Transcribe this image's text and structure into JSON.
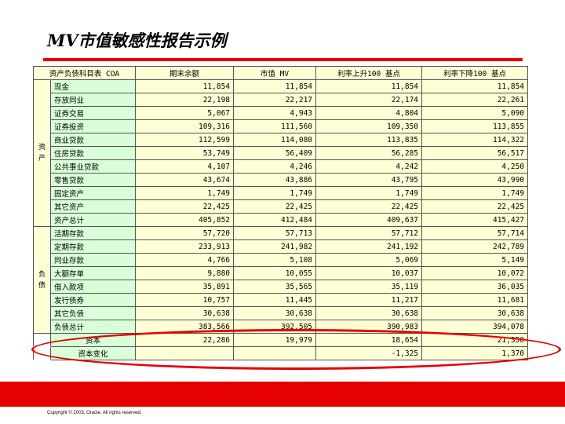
{
  "slide": {
    "title": "MV市值敏感性报告示例",
    "copyright": "Copyright © 2003, Oracle.  All rights reserved."
  },
  "table": {
    "headers": [
      "资产负债科目表 COA",
      "期末余额",
      "市值 MV",
      "利率上升100 基点",
      "利率下降100 基点"
    ],
    "asset_section_label": "资\n产",
    "liability_section_label": "负\n债",
    "assets": [
      {
        "label": "现金",
        "values": [
          "11,854",
          "11,854",
          "11,854",
          "11,854"
        ]
      },
      {
        "label": "存放同业",
        "values": [
          "22,198",
          "22,217",
          "22,174",
          "22,261"
        ]
      },
      {
        "label": "证券交易",
        "values": [
          "5,067",
          "4,943",
          "4,804",
          "5,090"
        ]
      },
      {
        "label": "证券投资",
        "values": [
          "109,316",
          "111,560",
          "109,350",
          "113,855"
        ]
      },
      {
        "label": "商业贷款",
        "values": [
          "112,599",
          "114,080",
          "113,835",
          "114,322"
        ]
      },
      {
        "label": "住房贷款",
        "values": [
          "53,749",
          "56,409",
          "56,285",
          "56,517"
        ]
      },
      {
        "label": "公共事业贷款",
        "values": [
          "4,107",
          "4,246",
          "4,242",
          "4,250"
        ]
      },
      {
        "label": "零售贷款",
        "values": [
          "43,674",
          "43,886",
          "43,795",
          "43,990"
        ]
      },
      {
        "label": "固定资产",
        "values": [
          "1,749",
          "1,749",
          "1,749",
          "1,749"
        ]
      },
      {
        "label": "其它资产",
        "values": [
          "22,425",
          "22,425",
          "22,425",
          "22,425"
        ]
      },
      {
        "label": "资产总计",
        "values": [
          "405,852",
          "412,484",
          "409,637",
          "415,427"
        ]
      }
    ],
    "liabilities": [
      {
        "label": "活期存款",
        "values": [
          "57,720",
          "57,713",
          "57,712",
          "57,714"
        ]
      },
      {
        "label": "定期存款",
        "values": [
          "233,913",
          "241,982",
          "241,192",
          "242,789"
        ]
      },
      {
        "label": "同业存款",
        "values": [
          "4,766",
          "5,108",
          "5,069",
          "5,149"
        ]
      },
      {
        "label": "大额存单",
        "values": [
          "9,880",
          "10,055",
          "10,037",
          "10,072"
        ]
      },
      {
        "label": "借入款项",
        "values": [
          "35,891",
          "35,565",
          "35,119",
          "36,035"
        ]
      },
      {
        "label": "发行债券",
        "values": [
          "10,757",
          "11,445",
          "11,217",
          "11,681"
        ]
      },
      {
        "label": "其它负债",
        "values": [
          "30,638",
          "30,638",
          "30,638",
          "30,638"
        ]
      },
      {
        "label": "负债总计",
        "values": [
          "383,566",
          "392,505",
          "390,983",
          "394,078"
        ]
      }
    ],
    "capital_row": {
      "label": "资本",
      "values": [
        "22,286",
        "19,979",
        "18,654",
        "21,350"
      ]
    },
    "capital_change_row": {
      "label": "资本变化",
      "values": [
        "",
        "",
        "-1,325",
        "1,370"
      ]
    }
  }
}
